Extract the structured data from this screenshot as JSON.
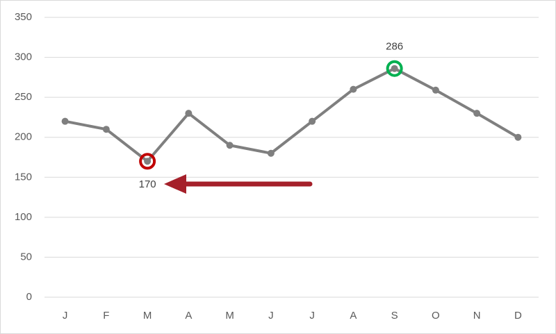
{
  "chart_data": {
    "type": "line",
    "categories": [
      "J",
      "F",
      "M",
      "A",
      "M",
      "J",
      "J",
      "A",
      "S",
      "O",
      "N",
      "D"
    ],
    "series": [
      {
        "color": "#7f7f7f",
        "values": [
          220,
          210,
          170,
          230,
          190,
          180,
          220,
          260,
          286,
          259,
          230,
          200
        ]
      }
    ],
    "ylim": [
      0,
      350
    ],
    "yticks": [
      0,
      50,
      100,
      150,
      200,
      250,
      300,
      350
    ],
    "grid": true,
    "highlights": [
      {
        "index": 2,
        "color": "#c00000",
        "label_position": "below"
      },
      {
        "index": 8,
        "color": "#00b050",
        "label_position": "above"
      }
    ]
  }
}
